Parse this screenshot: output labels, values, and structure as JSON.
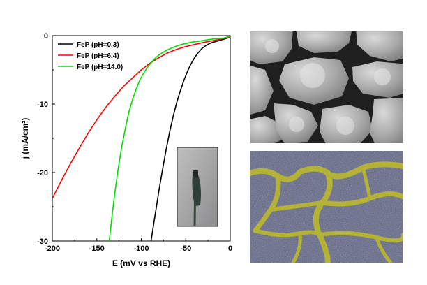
{
  "chart_data": {
    "type": "line",
    "xlabel": "E (mV vs RHE)",
    "ylabel": "j (mA/cm²)",
    "xlim": [
      -200,
      0
    ],
    "ylim": [
      -30,
      0
    ],
    "xticks": [
      -200,
      -150,
      -100,
      -50,
      0
    ],
    "xtick_labels": [
      "-200",
      "-150",
      "-100",
      "-50",
      "0"
    ],
    "yticks": [
      -30,
      -20,
      -10,
      0
    ],
    "ytick_labels": [
      "-30",
      "-20",
      "-10",
      "0"
    ],
    "legend_position": "top-left",
    "grid": false,
    "series": [
      {
        "name": "FeP (pH=0.3)",
        "color": "#000000",
        "x": [
          -89,
          -86,
          -83,
          -80,
          -76,
          -72,
          -68,
          -64,
          -60,
          -56,
          -52,
          -48,
          -44,
          -40,
          -36,
          -32,
          -28,
          -24,
          -20,
          -16,
          -12,
          -8,
          -4,
          -1
        ],
        "y": [
          -30,
          -27.5,
          -25,
          -22.5,
          -19.5,
          -16.6,
          -14.0,
          -11.7,
          -9.7,
          -8.0,
          -6.5,
          -5.2,
          -4.1,
          -3.2,
          -2.5,
          -1.9,
          -1.5,
          -1.2,
          -1.0,
          -0.85,
          -0.7,
          -0.55,
          -0.4,
          -0.2
        ]
      },
      {
        "name": "FeP (pH=6.4)",
        "color": "#ff0000",
        "x": [
          -200,
          -190,
          -180,
          -170,
          -160,
          -150,
          -140,
          -130,
          -120,
          -110,
          -100,
          -90,
          -80,
          -70,
          -60,
          -50,
          -40,
          -30,
          -20,
          -10,
          -5,
          -1
        ],
        "y": [
          -23.8,
          -21.2,
          -18.8,
          -16.5,
          -14.3,
          -12.3,
          -10.5,
          -8.9,
          -7.4,
          -6.2,
          -5.0,
          -4.0,
          -3.2,
          -2.5,
          -2.0,
          -1.6,
          -1.3,
          -1.0,
          -0.75,
          -0.5,
          -0.35,
          -0.2
        ]
      },
      {
        "name": "FeP (pH=14.0)",
        "color": "#00dd00",
        "x": [
          -136,
          -133,
          -130,
          -126,
          -122,
          -118,
          -114,
          -110,
          -106,
          -102,
          -98,
          -94,
          -90,
          -85,
          -80,
          -75,
          -70,
          -65,
          -60,
          -55,
          -50,
          -45,
          -40,
          -35,
          -30,
          -25,
          -20,
          -15,
          -10,
          -5,
          -1
        ],
        "y": [
          -30,
          -26.5,
          -23.2,
          -19.5,
          -16.3,
          -13.6,
          -11.2,
          -9.4,
          -7.9,
          -6.6,
          -5.6,
          -4.8,
          -4.1,
          -3.4,
          -2.8,
          -2.4,
          -2.05,
          -1.75,
          -1.5,
          -1.3,
          -1.15,
          -1.0,
          -0.9,
          -0.8,
          -0.7,
          -0.6,
          -0.5,
          -0.45,
          -0.4,
          -0.3,
          -0.1
        ]
      }
    ]
  },
  "images": {
    "inset_photo": "electrode-photo",
    "sem_image": "sem-micrograph",
    "eds_map": "eds-elemental-map"
  }
}
